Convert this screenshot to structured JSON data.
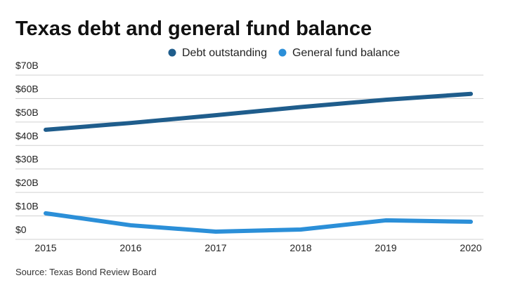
{
  "chart_data": {
    "type": "line",
    "title": "Texas debt and general fund balance",
    "source": "Source: Texas Bond Review Board",
    "categories": [
      "2015",
      "2016",
      "2017",
      "2018",
      "2019",
      "2020"
    ],
    "series": [
      {
        "name": "Debt outstanding",
        "color": "#1f5d8c",
        "values": [
          46.7,
          49.6,
          52.9,
          56.4,
          59.5,
          62
        ]
      },
      {
        "name": "General fund balance",
        "color": "#2b8fd8",
        "values": [
          11.1,
          6,
          3.3,
          4.2,
          8.1,
          7.5
        ]
      }
    ],
    "ylim": [
      0,
      70
    ],
    "yticks": [
      {
        "value": 0,
        "label": "$0"
      },
      {
        "value": 10,
        "label": "$10B"
      },
      {
        "value": 20,
        "label": "$20B"
      },
      {
        "value": 30,
        "label": "$30B"
      },
      {
        "value": 40,
        "label": "$40B"
      },
      {
        "value": 50,
        "label": "$50B"
      },
      {
        "value": 60,
        "label": "$60B"
      },
      {
        "value": 70,
        "label": "$70B"
      }
    ],
    "grid": true
  }
}
